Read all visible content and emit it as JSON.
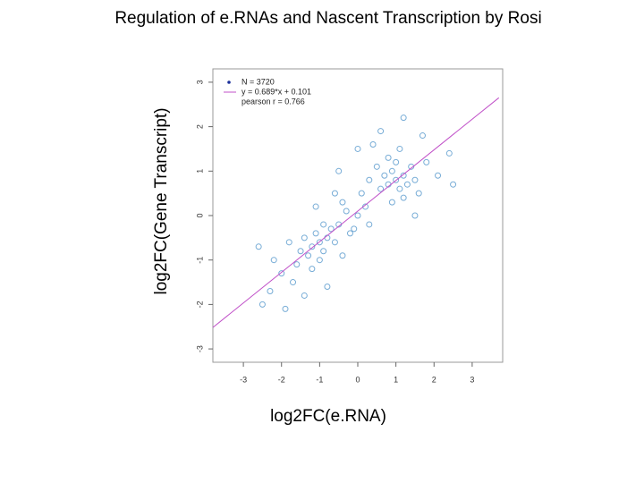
{
  "chart_data": {
    "type": "scatter",
    "title": "Regulation of e.RNAs and Nascent Transcription by Rosi",
    "xlabel": "log2FC(e.RNA)",
    "ylabel": "log2FC(Gene Transcript)",
    "legend": [
      "N = 3720",
      "y = 0.689*x + 0.101",
      "pearson r = 0.766"
    ],
    "legend_position": "upper left",
    "color": "#4a90c8",
    "fit_color": "#c050c8",
    "x": [
      -1.0,
      -1.2,
      -0.8,
      -1.1,
      -0.9,
      -1.3,
      -0.7,
      -1.5,
      -0.6,
      -1.4,
      -1.0,
      -0.5,
      -1.6,
      -0.9,
      -1.2,
      -2.0,
      -1.8,
      -0.4,
      -2.3,
      -1.7,
      -0.3,
      -2.6,
      -0.8,
      -1.1,
      -2.5,
      -0.2,
      -1.4,
      -0.6,
      -2.2,
      -1.9,
      1.0,
      0.8,
      1.2,
      1.1,
      0.9,
      1.3,
      0.7,
      1.0,
      1.4,
      0.6,
      1.2,
      0.8,
      1.5,
      0.5,
      1.1,
      1.6,
      0.3,
      1.8,
      0.9,
      1.2,
      2.1,
      0.4,
      1.7,
      2.4,
      0.1,
      1.5,
      0.6,
      2.5,
      0.0,
      -0.1,
      0.2,
      -0.4,
      0.3,
      0.0,
      -0.5
    ],
    "y": [
      -0.6,
      -0.7,
      -0.5,
      -0.4,
      -0.8,
      -0.9,
      -0.3,
      -0.8,
      -0.6,
      -0.5,
      -1.0,
      -0.2,
      -1.1,
      -0.2,
      -1.2,
      -1.3,
      -0.6,
      -0.9,
      -1.7,
      -1.5,
      0.1,
      -0.7,
      -1.6,
      0.2,
      -2.0,
      -0.4,
      -1.8,
      0.5,
      -1.0,
      -2.1,
      0.8,
      0.7,
      0.9,
      0.6,
      1.0,
      0.7,
      0.9,
      1.2,
      1.1,
      0.6,
      0.4,
      1.3,
      0.8,
      1.1,
      1.5,
      0.5,
      0.8,
      1.2,
      0.3,
      2.2,
      0.9,
      1.6,
      1.8,
      1.4,
      0.5,
      0.0,
      1.9,
      0.7,
      0.0,
      -0.3,
      0.2,
      0.3,
      -0.2,
      1.5,
      1.0
    ],
    "fit_line": {
      "x": [
        -3.8,
        3.7
      ],
      "y": [
        -2.517,
        2.65
      ]
    },
    "xlim": [
      -3.8,
      3.8
    ],
    "ylim": [
      -3.3,
      3.3
    ],
    "xticks": [
      -3,
      -2,
      -1,
      0,
      1,
      2,
      3
    ],
    "yticks": [
      -3,
      -2,
      -1,
      0,
      1,
      2,
      3
    ]
  }
}
